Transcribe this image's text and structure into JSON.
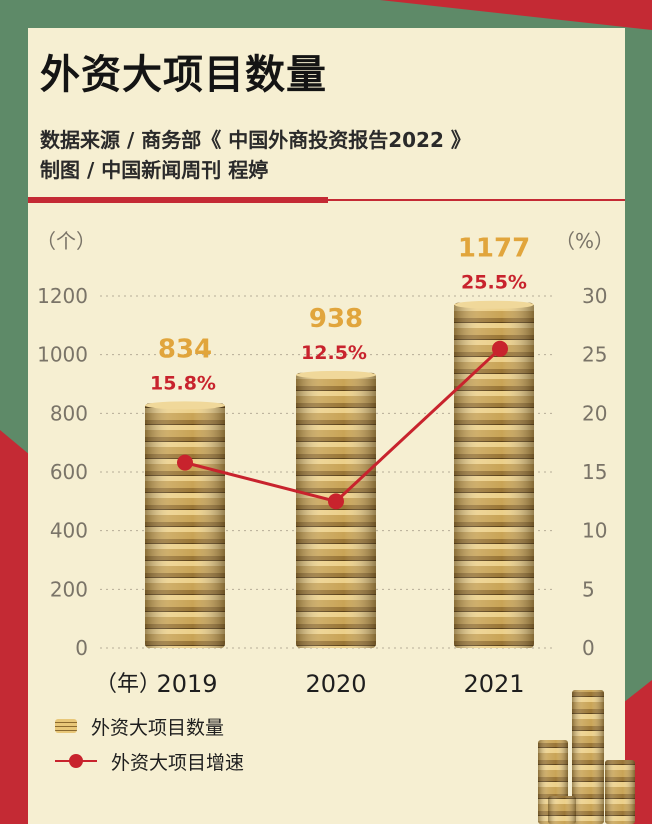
{
  "header": {
    "title": "外资大项目数量",
    "source_line": "数据来源 / 商务部《 中国外商投资报告2022 》",
    "credit_line": "制图 / 中国新闻周刊 程婷"
  },
  "colors": {
    "background_green": "#5e8a68",
    "background_red": "#c42a34",
    "panel": "#f6efd2",
    "coin_gold": "#c9a456",
    "count_label": "#e1a53c",
    "rate_line": "#c8232d",
    "axis_text": "#7a7468"
  },
  "chart_data": {
    "type": "bar",
    "categories": [
      "2019",
      "2020",
      "2021"
    ],
    "series": [
      {
        "name": "外资大项目数量",
        "axis": "left",
        "style": "coin-stack-bars",
        "values": [
          834,
          938,
          1177
        ],
        "labels": [
          "834",
          "938",
          "1177"
        ]
      },
      {
        "name": "外资大项目增速",
        "axis": "right",
        "style": "line-with-markers",
        "values": [
          15.8,
          12.5,
          25.5
        ],
        "labels": [
          "15.8%",
          "12.5%",
          "25.5%"
        ]
      }
    ],
    "xlabel": "（年）",
    "y_left": {
      "unit_label": "（个）",
      "min": 0,
      "max": 1200,
      "ticks": [
        "0",
        "200",
        "400",
        "600",
        "800",
        "1000",
        "1200"
      ]
    },
    "y_right": {
      "unit_label": "（%）",
      "min": 0,
      "max": 30,
      "ticks": [
        "0",
        "5",
        "10",
        "15",
        "20",
        "25",
        "30"
      ]
    },
    "grid": "dotted horizontal",
    "legend_position": "bottom-left"
  },
  "legend": {
    "bars_label": "外资大项目数量",
    "line_label": "外资大项目增速"
  }
}
